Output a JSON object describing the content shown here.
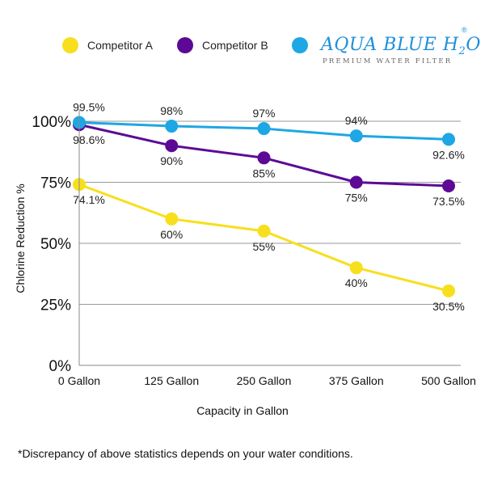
{
  "chart_data": {
    "type": "line",
    "categories": [
      "0 Gallon",
      "125 Gallon",
      "250 Gallon",
      "375 Gallon",
      "500 Gallon"
    ],
    "series": [
      {
        "name": "Competitor A",
        "color": "#f7df1e",
        "values": [
          74.1,
          60,
          55,
          40,
          30.5
        ],
        "labels": [
          "74.1%",
          "60%",
          "55%",
          "40%",
          "30.5%"
        ]
      },
      {
        "name": "Competitor B",
        "color": "#5c0a96",
        "values": [
          98.6,
          90,
          85,
          75,
          73.5
        ],
        "labels": [
          "98.6%",
          "90%",
          "85%",
          "75%",
          "73.5%"
        ]
      },
      {
        "name": "",
        "color": "#1ea7e4",
        "values": [
          99.5,
          98,
          97,
          94,
          92.6
        ],
        "labels": [
          "99.5%",
          "98%",
          "97%",
          "94%",
          "92.6%"
        ]
      }
    ],
    "ytick_labels": [
      "0%",
      "25%",
      "50%",
      "75%",
      "100%"
    ],
    "ytick_values": [
      0,
      25,
      50,
      75,
      100
    ],
    "ylim": [
      0,
      100
    ],
    "xlabel": "Capacity in Gallon",
    "ylabel": "Chlorine Reduction %",
    "grid": true,
    "legend_position": "top"
  },
  "brand": {
    "name": "AQUA BLUE H",
    "subscript": "2",
    "suffix": "O",
    "registered": "®",
    "tagline": "PREMIUM WATER FILTER"
  },
  "footnote": "*Discrepancy of above statistics depends on your water conditions."
}
